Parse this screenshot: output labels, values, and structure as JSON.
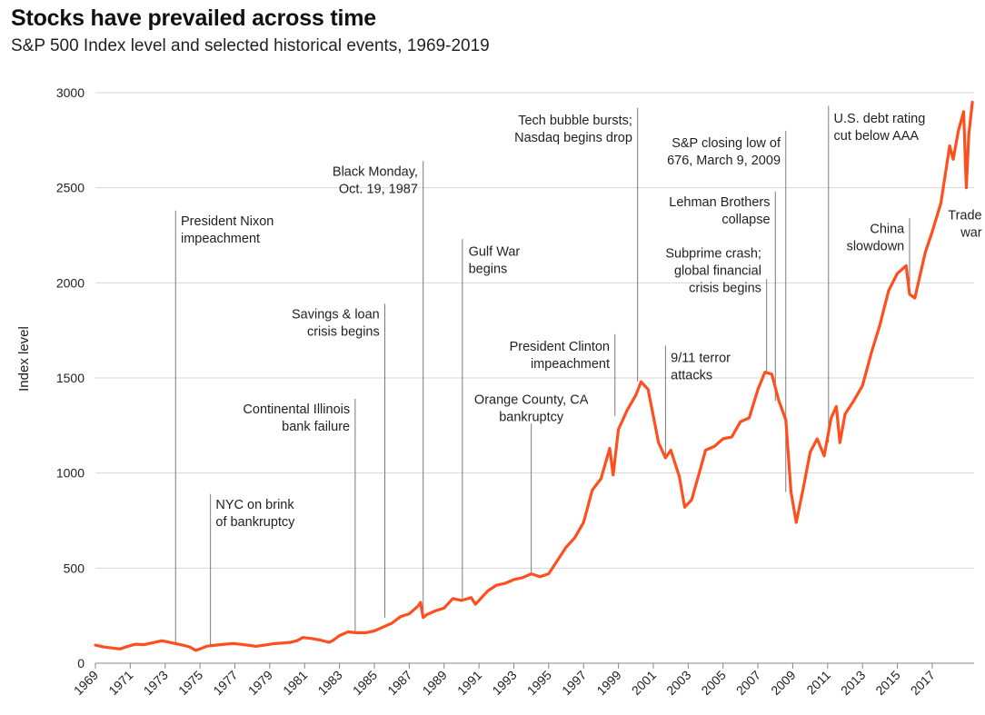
{
  "chart_data": {
    "type": "line",
    "title": "Stocks have prevailed across time",
    "subtitle": "S&P 500 Index level and selected historical events, 1969-2019",
    "xlabel": "",
    "ylabel": "Index level",
    "xlim": [
      1969,
      2019.4
    ],
    "ylim": [
      0,
      3000
    ],
    "grid": "horizontal",
    "legend": "none",
    "y_ticks": [
      0,
      500,
      1000,
      1500,
      2000,
      2500,
      3000
    ],
    "y_tick_labels": [
      "0",
      "500",
      "1000",
      "1500",
      "2000",
      "2500",
      "3000"
    ],
    "x_ticks": [
      1969,
      1971,
      1973,
      1975,
      1977,
      1979,
      1981,
      1983,
      1985,
      1987,
      1989,
      1991,
      1993,
      1995,
      1997,
      1999,
      2001,
      2003,
      2005,
      2007,
      2009,
      2011,
      2013,
      2015,
      2017
    ],
    "x_tick_labels": [
      "1969",
      "1971",
      "1973",
      "1975",
      "1977",
      "1979",
      "1981",
      "1983",
      "1985",
      "1987",
      "1989",
      "1991",
      "1993",
      "1995",
      "1997",
      "1999",
      "2001",
      "2003",
      "2005",
      "2007",
      "2009",
      "2011",
      "2013",
      "2015",
      "2017"
    ],
    "series": [
      {
        "color": "#ff4f1f",
        "x": [
          1969.0,
          1969.5,
          1970.0,
          1970.4,
          1970.9,
          1971.3,
          1971.8,
          1972.3,
          1972.8,
          1973.0,
          1973.5,
          1974.0,
          1974.4,
          1974.75,
          1975.0,
          1975.4,
          1975.9,
          1976.4,
          1976.9,
          1977.4,
          1977.9,
          1978.2,
          1978.7,
          1979.2,
          1979.7,
          1980.2,
          1980.6,
          1980.9,
          1981.4,
          1981.9,
          1982.4,
          1982.6,
          1983.0,
          1983.5,
          1984.0,
          1984.5,
          1985.0,
          1985.5,
          1986.0,
          1986.5,
          1987.0,
          1987.5,
          1987.65,
          1987.8,
          1988.0,
          1988.5,
          1989.0,
          1989.5,
          1990.0,
          1990.55,
          1990.8,
          1991.0,
          1991.5,
          1992.0,
          1992.5,
          1993.0,
          1993.5,
          1994.0,
          1994.5,
          1995.0,
          1995.5,
          1996.0,
          1996.5,
          1997.0,
          1997.5,
          1998.0,
          1998.5,
          1998.7,
          1999.0,
          1999.5,
          2000.0,
          2000.3,
          2000.7,
          2001.0,
          2001.3,
          2001.7,
          2002.0,
          2002.5,
          2002.8,
          2003.2,
          2003.6,
          2004.0,
          2004.5,
          2005.0,
          2005.5,
          2006.0,
          2006.5,
          2007.0,
          2007.4,
          2007.8,
          2008.2,
          2008.6,
          2008.9,
          2009.2,
          2009.6,
          2010.0,
          2010.4,
          2010.8,
          2011.2,
          2011.5,
          2011.7,
          2012.0,
          2012.5,
          2013.0,
          2013.5,
          2014.0,
          2014.5,
          2015.0,
          2015.5,
          2015.7,
          2016.0,
          2016.3,
          2016.6,
          2017.0,
          2017.5,
          2018.0,
          2018.2,
          2018.5,
          2018.8,
          2018.95,
          2019.1,
          2019.3
        ],
        "y": [
          95,
          85,
          80,
          75,
          90,
          100,
          98,
          108,
          118,
          115,
          105,
          95,
          86,
          68,
          75,
          90,
          95,
          100,
          103,
          99,
          93,
          89,
          95,
          102,
          106,
          110,
          120,
          135,
          130,
          122,
          110,
          118,
          145,
          165,
          160,
          160,
          170,
          190,
          210,
          245,
          260,
          300,
          320,
          240,
          255,
          275,
          290,
          340,
          330,
          345,
          310,
          330,
          380,
          410,
          420,
          440,
          450,
          470,
          455,
          470,
          540,
          610,
          660,
          740,
          910,
          970,
          1130,
          990,
          1230,
          1330,
          1410,
          1480,
          1440,
          1300,
          1160,
          1080,
          1120,
          980,
          820,
          860,
          990,
          1120,
          1140,
          1180,
          1190,
          1270,
          1290,
          1440,
          1530,
          1520,
          1380,
          1280,
          900,
          740,
          920,
          1110,
          1180,
          1090,
          1290,
          1350,
          1160,
          1310,
          1380,
          1460,
          1630,
          1780,
          1960,
          2050,
          2090,
          1940,
          1920,
          2040,
          2160,
          2270,
          2420,
          2720,
          2650,
          2800,
          2900,
          2500,
          2780,
          2950
        ]
      }
    ],
    "annotations": [
      {
        "x": 1973.6,
        "y_top": 2380,
        "y_bottom": 95,
        "lines": [
          "President Nixon",
          "impeachment"
        ],
        "align": "start",
        "tx": 1973.9,
        "ty": 2360
      },
      {
        "x": 1975.6,
        "y_top": 890,
        "y_bottom": 95,
        "lines": [
          "NYC on brink",
          "of bankruptcy"
        ],
        "align": "start",
        "tx": 1975.9,
        "ty": 870
      },
      {
        "x": 1983.9,
        "y_top": 1390,
        "y_bottom": 160,
        "lines": [
          "Continental Illinois",
          "bank failure"
        ],
        "align": "end",
        "tx": 1983.6,
        "ty": 1370
      },
      {
        "x": 1985.6,
        "y_top": 1890,
        "y_bottom": 240,
        "lines": [
          "Savings & loan",
          "crisis begins"
        ],
        "align": "end",
        "tx": 1985.3,
        "ty": 1870
      },
      {
        "x": 1987.8,
        "y_top": 2640,
        "y_bottom": 240,
        "lines": [
          "Black Monday,",
          "Oct. 19, 1987"
        ],
        "align": "end",
        "tx": 1987.5,
        "ty": 2620
      },
      {
        "x": 1990.05,
        "y_top": 2230,
        "y_bottom": 330,
        "lines": [
          "Gulf War",
          "begins"
        ],
        "align": "start",
        "tx": 1990.4,
        "ty": 2200
      },
      {
        "x": 1994.0,
        "y_top": 1260,
        "y_bottom": 470,
        "lines": [
          "Orange County, CA",
          "bankruptcy"
        ],
        "align": "middle",
        "tx": 1994.0,
        "ty": 1420
      },
      {
        "x": 1998.8,
        "y_top": 1730,
        "y_bottom": 1300,
        "lines": [
          "President Clinton",
          "impeachment"
        ],
        "align": "end",
        "tx": 1998.5,
        "ty": 1700
      },
      {
        "x": 2000.1,
        "y_top": 2920,
        "y_bottom": 1480,
        "lines": [
          "Tech bubble bursts;",
          "Nasdaq begins drop"
        ],
        "align": "end",
        "tx": 1999.8,
        "ty": 2890
      },
      {
        "x": 2001.7,
        "y_top": 1670,
        "y_bottom": 1080,
        "lines": [
          "9/11 terror",
          "attacks"
        ],
        "align": "start",
        "tx": 2002.0,
        "ty": 1640
      },
      {
        "x": 2007.5,
        "y_top": 2020,
        "y_bottom": 1530,
        "lines": [
          "Subprime crash;",
          "global financial",
          "crisis begins"
        ],
        "align": "end",
        "tx": 2007.2,
        "ty": 2190
      },
      {
        "x": 2008.0,
        "y_top": 2480,
        "y_bottom": 1380,
        "lines": [
          "Lehman Brothers",
          "collapse"
        ],
        "align": "end",
        "tx": 2007.7,
        "ty": 2460
      },
      {
        "x": 2008.6,
        "y_top": 2800,
        "y_bottom": 900,
        "lines": [
          "S&P closing low of",
          "676, March 9, 2009"
        ],
        "align": "end",
        "tx": 2008.3,
        "ty": 2770
      },
      {
        "x": 2011.05,
        "y_top": 2930,
        "y_bottom": 1160,
        "lines": [
          "U.S. debt rating",
          "cut below AAA"
        ],
        "align": "start",
        "tx": 2011.35,
        "ty": 2900
      },
      {
        "x": 2015.7,
        "y_top": 2340,
        "y_bottom": 1940,
        "lines": [
          "China",
          "slowdown"
        ],
        "align": "end",
        "tx": 2015.4,
        "ty": 2320
      },
      {
        "x": 2018.9,
        "y_top": 2420,
        "y_bottom": 2500,
        "lines": [
          "Trade",
          "war"
        ],
        "align": "end",
        "tx": 2019.85,
        "ty": 2390,
        "no_line": true
      }
    ]
  }
}
